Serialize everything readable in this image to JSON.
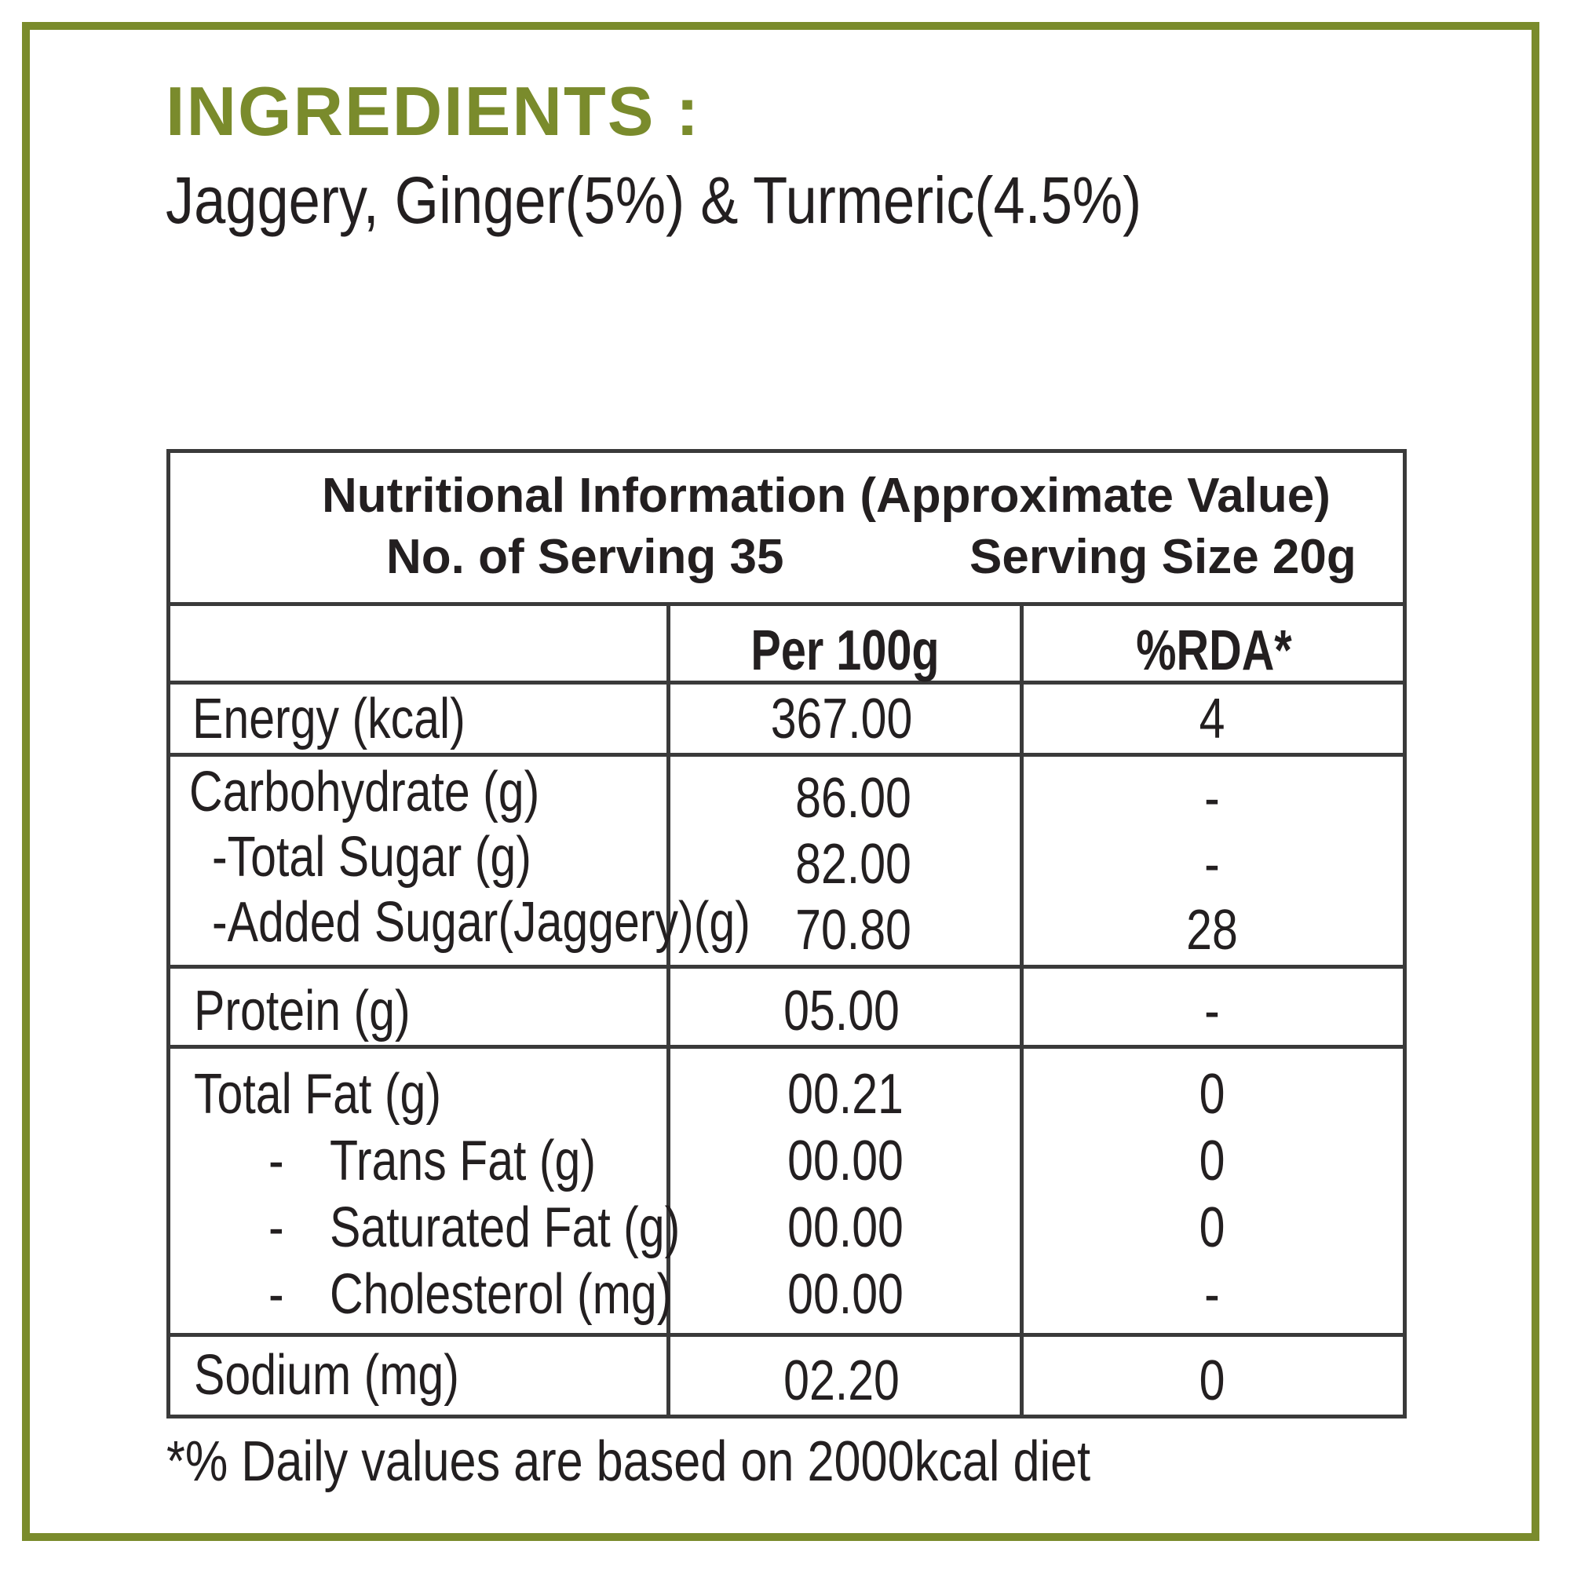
{
  "ingredients": {
    "title": "INGREDIENTS :",
    "text": "Jaggery, Ginger(5%) & Turmeric(4.5%)"
  },
  "nutrition": {
    "title": "Nutritional Information (Approximate Value)",
    "servings": "No. of Serving 35",
    "serving_size": "Serving Size 20g",
    "col_per100": "Per 100g",
    "col_rda": "%RDA*",
    "rows": [
      {
        "label": "Energy (kcal)",
        "per100": "367.00",
        "rda": "4"
      },
      {
        "label": "Carbohydrate (g)",
        "per100": "86.00",
        "rda": "-"
      },
      {
        "label": "-Total Sugar (g)",
        "per100": "82.00",
        "rda": "-"
      },
      {
        "label": "-Added Sugar(Jaggery)(g)",
        "per100": "70.80",
        "rda": "28"
      },
      {
        "label": "Protein (g)",
        "per100": "05.00",
        "rda": "-"
      },
      {
        "label": "Total Fat (g)",
        "per100": "00.21",
        "rda": "0"
      },
      {
        "bullet": "-",
        "label": "Trans Fat (g)",
        "per100": "00.00",
        "rda": "0"
      },
      {
        "bullet": "-",
        "label": "Saturated Fat (g)",
        "per100": "00.00",
        "rda": "0"
      },
      {
        "bullet": "-",
        "label": "Cholesterol (mg)",
        "per100": "00.00",
        "rda": "-"
      },
      {
        "label": "Sodium (mg)",
        "per100": "02.20",
        "rda": "0"
      }
    ],
    "footnote": "*% Daily values are based on 2000kcal diet"
  },
  "colors": {
    "accent": "#7a8b2c",
    "text": "#231f20",
    "table_border": "#3a3a3a"
  }
}
